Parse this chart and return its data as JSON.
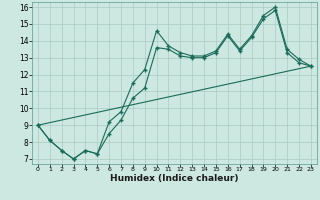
{
  "xlabel": "Humidex (Indice chaleur)",
  "ylabel": "",
  "background_color": "#cce8e0",
  "grid_color": "#b0cfc8",
  "line_color": "#1a6b5a",
  "xlim": [
    -0.5,
    23.5
  ],
  "ylim": [
    6.7,
    16.3
  ],
  "xticks": [
    0,
    1,
    2,
    3,
    4,
    5,
    6,
    7,
    8,
    9,
    10,
    11,
    12,
    13,
    14,
    15,
    16,
    17,
    18,
    19,
    20,
    21,
    22,
    23
  ],
  "yticks": [
    7,
    8,
    9,
    10,
    11,
    12,
    13,
    14,
    15,
    16
  ],
  "series1_x": [
    0,
    1,
    2,
    3,
    4,
    5,
    6,
    7,
    8,
    9,
    10,
    11,
    12,
    13,
    14,
    15,
    16,
    17,
    18,
    19,
    20,
    21,
    22,
    23
  ],
  "series1_y": [
    9.0,
    8.1,
    7.5,
    7.0,
    7.5,
    7.3,
    9.2,
    9.8,
    11.5,
    12.3,
    14.6,
    13.7,
    13.3,
    13.1,
    13.1,
    13.4,
    14.4,
    13.5,
    14.3,
    15.5,
    16.0,
    13.5,
    12.9,
    12.5
  ],
  "series2_x": [
    0,
    1,
    2,
    3,
    4,
    5,
    6,
    7,
    8,
    9,
    10,
    11,
    12,
    13,
    14,
    15,
    16,
    17,
    18,
    19,
    20,
    21,
    22,
    23
  ],
  "series2_y": [
    9.0,
    8.1,
    7.5,
    7.0,
    7.5,
    7.3,
    8.5,
    9.3,
    10.6,
    11.2,
    13.6,
    13.5,
    13.1,
    13.0,
    13.0,
    13.3,
    14.3,
    13.4,
    14.2,
    15.3,
    15.8,
    13.3,
    12.7,
    12.5
  ],
  "series3_x": [
    0,
    23
  ],
  "series3_y": [
    9.0,
    12.5
  ]
}
